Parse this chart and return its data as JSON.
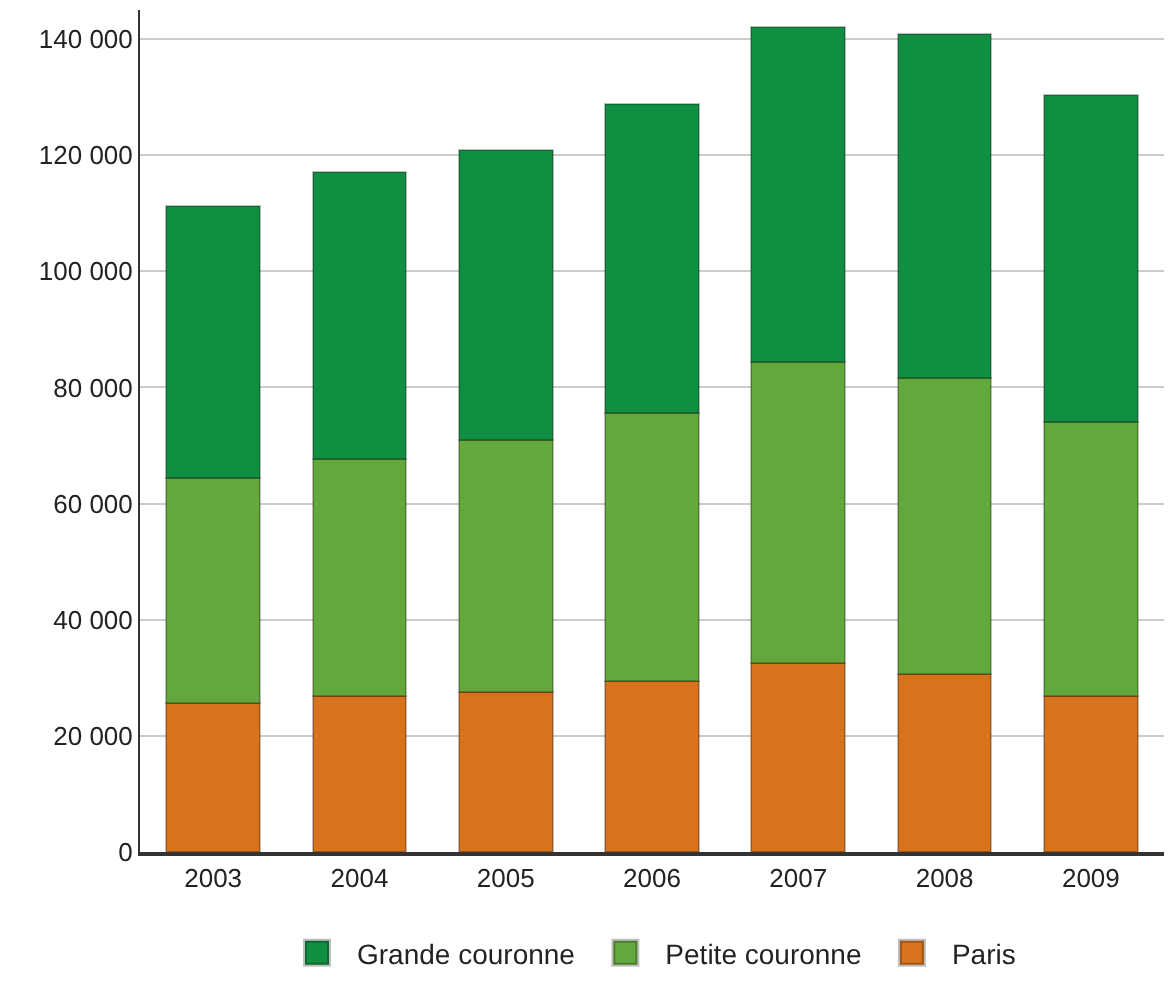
{
  "chart_data": {
    "type": "bar",
    "stacked": true,
    "categories": [
      "2003",
      "2004",
      "2005",
      "2006",
      "2007",
      "2008",
      "2009"
    ],
    "series": [
      {
        "name": "Paris",
        "color": "#d7731c",
        "values": [
          25700,
          26800,
          27500,
          29400,
          32500,
          30600,
          26800
        ]
      },
      {
        "name": "Petite couronne",
        "color": "#63a83c",
        "values": [
          38700,
          40800,
          43500,
          46200,
          51800,
          51100,
          47300
        ]
      },
      {
        "name": "Grande couronne",
        "color": "#108e41",
        "values": [
          46900,
          49500,
          49900,
          53300,
          57700,
          59200,
          56300
        ]
      }
    ],
    "ylim": [
      0,
      145000
    ],
    "yticks": [
      {
        "value": 0,
        "label": "0"
      },
      {
        "value": 20000,
        "label": "20 000"
      },
      {
        "value": 40000,
        "label": "40 000"
      },
      {
        "value": 60000,
        "label": "60 000"
      },
      {
        "value": 80000,
        "label": "80 000"
      },
      {
        "value": 100000,
        "label": "100 000"
      },
      {
        "value": 120000,
        "label": "120 000"
      },
      {
        "value": 140000,
        "label": "140 000"
      }
    ],
    "grid": "y",
    "legend": "bottom"
  }
}
